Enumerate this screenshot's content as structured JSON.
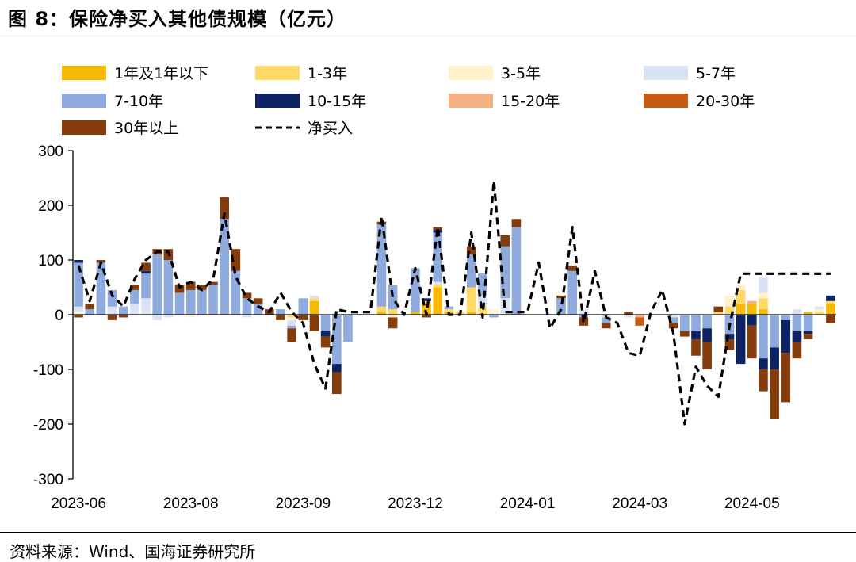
{
  "title": "图 8：保险净买入其他债规模（亿元）",
  "source": "资料来源：Wind、国海证券研究所",
  "colors": {
    "1年及1年以下": "#f7b900",
    "1-3年": "#ffd966",
    "3-5年": "#fff2cc",
    "5-7年": "#dae3f3",
    "7-10年": "#8faadc",
    "10-15年": "#0d2364",
    "15-20年": "#f4b183",
    "20-30年": "#c55a11",
    "30年以上": "#843c0c",
    "净买入": "#000000"
  },
  "chart_data": {
    "type": "bar",
    "stacked": true,
    "title": "",
    "xlabel": "",
    "ylabel": "",
    "ylim": [
      -300,
      300
    ],
    "yticks": [
      300,
      200,
      100,
      0,
      -100,
      -200,
      -300
    ],
    "xtick_labels": [
      "2023-06",
      "2023-08",
      "2023-09",
      "2023-12",
      "2024-01",
      "2024-03",
      "2024-05"
    ],
    "xtick_index": [
      0,
      10,
      20,
      30,
      40,
      50,
      60
    ],
    "legend_position": "top",
    "series": [
      {
        "name": "1年及1年以下",
        "values": [
          0,
          0,
          0,
          0,
          0,
          0,
          0,
          0,
          0,
          0,
          0,
          0,
          0,
          0,
          0,
          0,
          0,
          0,
          0,
          0,
          0,
          25,
          0,
          0,
          0,
          0,
          0,
          5,
          0,
          0,
          5,
          20,
          50,
          5,
          0,
          5,
          0,
          0,
          0,
          0,
          0,
          0,
          0,
          0,
          0,
          0,
          0,
          0,
          0,
          0,
          0,
          0,
          0,
          0,
          0,
          0,
          0,
          0,
          0,
          20,
          20,
          10,
          0,
          0,
          0,
          5,
          0,
          20
        ]
      },
      {
        "name": "1-3年",
        "values": [
          0,
          0,
          0,
          0,
          0,
          0,
          0,
          0,
          0,
          0,
          0,
          0,
          0,
          0,
          0,
          0,
          0,
          0,
          0,
          -5,
          0,
          5,
          0,
          0,
          0,
          0,
          0,
          10,
          10,
          0,
          0,
          5,
          5,
          5,
          5,
          45,
          15,
          0,
          0,
          0,
          0,
          0,
          0,
          0,
          0,
          0,
          0,
          0,
          0,
          0,
          0,
          0,
          0,
          0,
          0,
          0,
          0,
          5,
          15,
          25,
          0,
          20,
          0,
          0,
          0,
          0,
          5,
          5
        ]
      },
      {
        "name": "3-5年",
        "values": [
          5,
          0,
          0,
          0,
          0,
          0,
          0,
          0,
          0,
          0,
          -5,
          0,
          0,
          0,
          0,
          0,
          0,
          0,
          0,
          -5,
          0,
          0,
          0,
          0,
          0,
          0,
          0,
          0,
          -5,
          0,
          0,
          0,
          0,
          0,
          0,
          0,
          0,
          10,
          0,
          0,
          0,
          0,
          0,
          0,
          0,
          0,
          0,
          0,
          0,
          0,
          0,
          0,
          0,
          0,
          0,
          0,
          0,
          0,
          20,
          10,
          0,
          10,
          0,
          0,
          0,
          0,
          5,
          0
        ]
      },
      {
        "name": "5-7年",
        "values": [
          10,
          0,
          0,
          15,
          0,
          20,
          30,
          -10,
          -5,
          0,
          0,
          0,
          0,
          0,
          0,
          -5,
          0,
          0,
          0,
          -10,
          0,
          5,
          0,
          0,
          0,
          0,
          0,
          0,
          0,
          0,
          0,
          0,
          5,
          0,
          0,
          0,
          20,
          0,
          30,
          0,
          0,
          0,
          0,
          0,
          0,
          10,
          0,
          -5,
          0,
          -5,
          0,
          0,
          0,
          -5,
          0,
          0,
          0,
          0,
          0,
          0,
          0,
          30,
          0,
          0,
          10,
          0,
          5,
          0
        ]
      },
      {
        "name": "7-10年",
        "values": [
          80,
          10,
          95,
          30,
          15,
          25,
          45,
          110,
          100,
          40,
          45,
          45,
          55,
          175,
          80,
          30,
          20,
          0,
          10,
          -5,
          30,
          0,
          -30,
          -90,
          -50,
          0,
          0,
          150,
          45,
          0,
          80,
          0,
          90,
          5,
          0,
          60,
          40,
          -5,
          95,
          160,
          0,
          0,
          0,
          30,
          80,
          -5,
          0,
          -10,
          0,
          0,
          0,
          0,
          0,
          -10,
          -30,
          -30,
          -25,
          0,
          -35,
          0,
          0,
          -80,
          -60,
          -10,
          -30,
          -30,
          0,
          0
        ]
      },
      {
        "name": "10-15年",
        "values": [
          5,
          0,
          0,
          0,
          0,
          0,
          5,
          0,
          0,
          0,
          0,
          0,
          0,
          0,
          0,
          0,
          0,
          0,
          0,
          0,
          0,
          0,
          -10,
          -15,
          0,
          0,
          0,
          0,
          0,
          0,
          0,
          5,
          5,
          0,
          0,
          0,
          0,
          0,
          0,
          0,
          0,
          0,
          0,
          0,
          0,
          0,
          0,
          0,
          0,
          0,
          0,
          0,
          0,
          0,
          0,
          -15,
          -25,
          0,
          -10,
          -90,
          -20,
          -20,
          -40,
          -60,
          -20,
          -5,
          0,
          10
        ]
      },
      {
        "name": "15-20年",
        "values": [
          0,
          0,
          0,
          0,
          0,
          0,
          0,
          0,
          0,
          0,
          0,
          0,
          0,
          0,
          0,
          0,
          0,
          0,
          0,
          0,
          0,
          0,
          0,
          0,
          0,
          0,
          0,
          0,
          0,
          0,
          0,
          0,
          0,
          0,
          0,
          0,
          0,
          0,
          0,
          0,
          0,
          0,
          0,
          0,
          0,
          0,
          0,
          0,
          0,
          0,
          -5,
          0,
          0,
          0,
          0,
          0,
          0,
          0,
          0,
          0,
          5,
          0,
          0,
          0,
          0,
          0,
          0,
          0
        ]
      },
      {
        "name": "20-30年",
        "values": [
          0,
          0,
          0,
          0,
          0,
          0,
          0,
          0,
          0,
          0,
          0,
          0,
          0,
          0,
          0,
          0,
          0,
          0,
          0,
          0,
          0,
          0,
          0,
          0,
          0,
          0,
          0,
          0,
          0,
          0,
          0,
          0,
          0,
          0,
          0,
          0,
          0,
          0,
          0,
          0,
          0,
          0,
          0,
          0,
          0,
          0,
          0,
          0,
          0,
          0,
          -15,
          0,
          0,
          0,
          0,
          0,
          0,
          0,
          0,
          0,
          0,
          0,
          0,
          0,
          0,
          0,
          0,
          0
        ]
      },
      {
        "name": "30年以上",
        "values": [
          -5,
          10,
          5,
          -10,
          -5,
          10,
          15,
          10,
          20,
          15,
          15,
          10,
          5,
          40,
          40,
          10,
          10,
          10,
          -10,
          -25,
          -10,
          -30,
          -20,
          -40,
          0,
          0,
          0,
          5,
          -20,
          0,
          0,
          -5,
          5,
          0,
          0,
          15,
          0,
          0,
          20,
          15,
          0,
          0,
          0,
          5,
          10,
          -15,
          0,
          -10,
          0,
          5,
          0,
          0,
          0,
          -10,
          -10,
          -30,
          -50,
          10,
          -20,
          0,
          -60,
          -40,
          -90,
          -90,
          -30,
          -10,
          0,
          -15
        ]
      },
      {
        "name": "净买入",
        "type": "line",
        "values": [
          90,
          25,
          95,
          35,
          15,
          65,
          100,
          115,
          115,
          50,
          60,
          45,
          65,
          185,
          70,
          30,
          15,
          5,
          40,
          5,
          -15,
          -90,
          -135,
          10,
          5,
          5,
          5,
          180,
          30,
          0,
          85,
          0,
          160,
          0,
          0,
          150,
          -5,
          245,
          5,
          5,
          5,
          95,
          -25,
          10,
          160,
          -15,
          80,
          -5,
          -15,
          -70,
          -75,
          5,
          45,
          -35,
          -200,
          -95,
          -130,
          -150,
          -20,
          75,
          75,
          75,
          75,
          75,
          75,
          75,
          75,
          75
        ]
      }
    ]
  }
}
